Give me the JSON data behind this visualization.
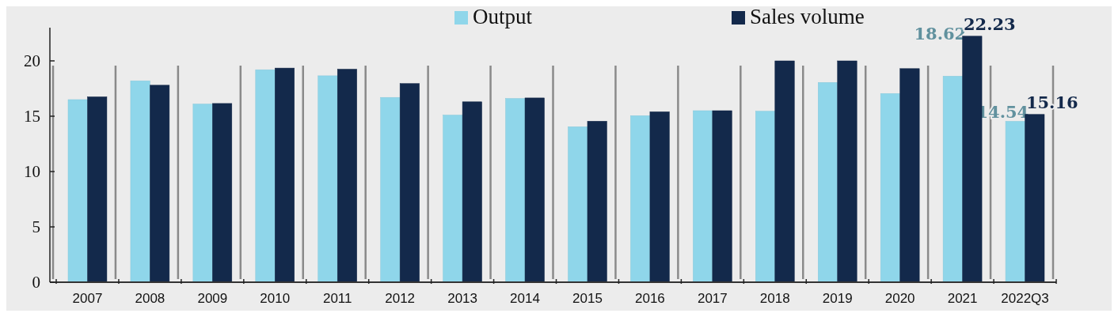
{
  "chart_data": {
    "type": "bar",
    "categories": [
      "2007",
      "2008",
      "2009",
      "2010",
      "2011",
      "2012",
      "2013",
      "2014",
      "2015",
      "2016",
      "2017",
      "2018",
      "2019",
      "2020",
      "2021",
      "2022Q3"
    ],
    "series": [
      {
        "name": "Output",
        "color": "#8fd6ea",
        "values": [
          16.5,
          18.2,
          16.1,
          19.2,
          18.65,
          16.7,
          15.1,
          16.6,
          14.05,
          15.05,
          15.5,
          15.45,
          18.05,
          17.05,
          18.62,
          14.54
        ],
        "value_labels": [
          null,
          null,
          null,
          null,
          null,
          null,
          null,
          null,
          null,
          null,
          null,
          null,
          null,
          null,
          "18.62",
          "14.54"
        ]
      },
      {
        "name": "Sales volume",
        "color": "#13294b",
        "values": [
          16.75,
          17.8,
          16.15,
          19.35,
          19.25,
          17.95,
          16.3,
          16.65,
          14.55,
          15.4,
          15.5,
          20,
          20,
          19.3,
          22.23,
          15.16
        ],
        "value_labels": [
          null,
          null,
          null,
          null,
          null,
          null,
          null,
          null,
          null,
          null,
          null,
          null,
          null,
          null,
          "22.23",
          "15.16"
        ]
      }
    ],
    "ylim": [
      0,
      23
    ],
    "yticks": [
      0,
      5,
      10,
      15,
      20
    ],
    "grid": "x",
    "legend": "top"
  }
}
